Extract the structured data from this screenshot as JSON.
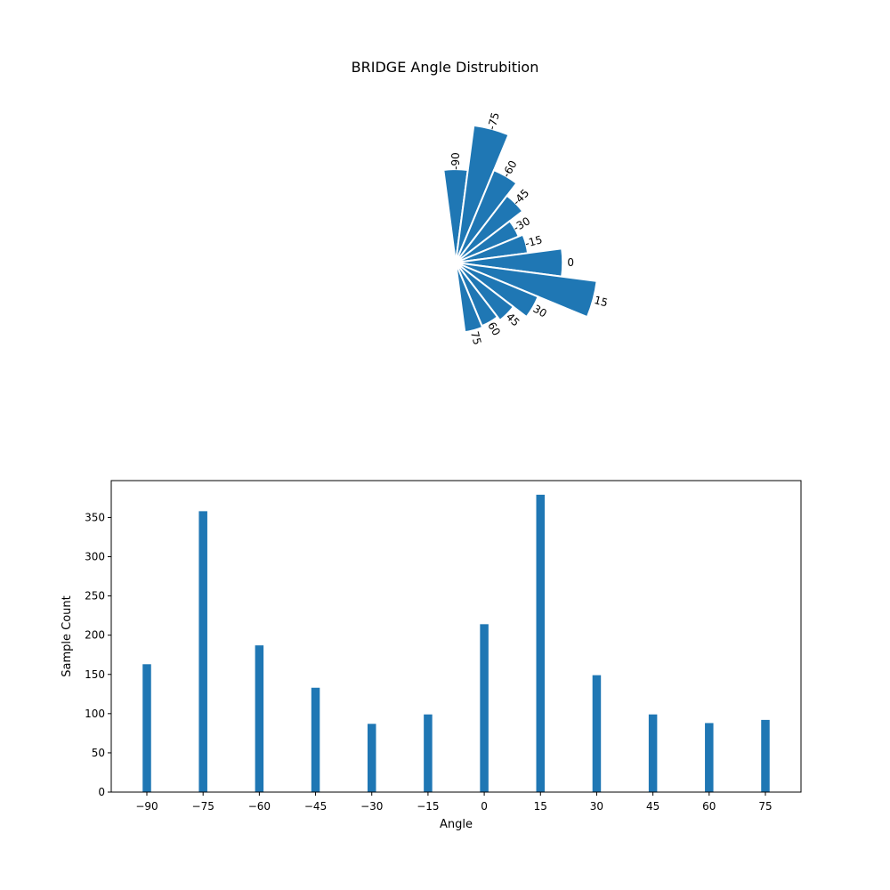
{
  "title": "BRIDGE Angle Distrubition",
  "accent_color": "#1f77b4",
  "chart_data": [
    {
      "type": "polar-bar",
      "categories": [
        "-90",
        "-75",
        "-60",
        "-45",
        "-30",
        "-15",
        "0",
        "15",
        "30",
        "45",
        "60",
        "75"
      ],
      "values": [
        163,
        358,
        187,
        133,
        87,
        99,
        214,
        379,
        149,
        99,
        88,
        92
      ]
    },
    {
      "type": "bar",
      "categories": [
        "-90",
        "-75",
        "-60",
        "-45",
        "-30",
        "-15",
        "0",
        "15",
        "30",
        "45",
        "60",
        "75"
      ],
      "x": [
        -90,
        -75,
        -60,
        -45,
        -30,
        -15,
        0,
        15,
        30,
        45,
        60,
        75
      ],
      "values": [
        163,
        358,
        187,
        133,
        87,
        99,
        214,
        379,
        149,
        99,
        88,
        92
      ],
      "x_tick_labels": [
        "−90",
        "−75",
        "−60",
        "−45",
        "−30",
        "−15",
        "0",
        "15",
        "30",
        "45",
        "60",
        "75"
      ],
      "y_ticks": [
        0,
        50,
        100,
        150,
        200,
        250,
        300,
        350
      ],
      "xlabel": "Angle",
      "ylabel": "Sample Count",
      "xlim": [
        -99.5,
        84.5
      ],
      "ylim": [
        0,
        397
      ],
      "grid": false
    }
  ]
}
